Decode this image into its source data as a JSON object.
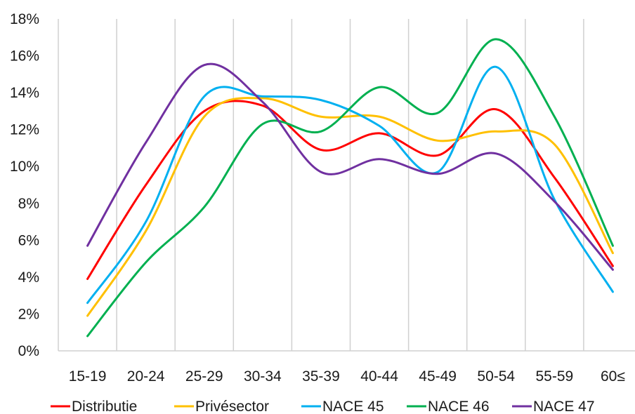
{
  "chart_data": {
    "type": "line",
    "title": "",
    "xlabel": "",
    "ylabel": "",
    "categories": [
      "15-19",
      "20-24",
      "25-29",
      "30-34",
      "35-39",
      "40-44",
      "45-49",
      "50-54",
      "55-59",
      "60≤"
    ],
    "ylim": [
      0,
      18
    ],
    "ytick_step": 2,
    "ytick_labels": [
      "0%",
      "2%",
      "4%",
      "6%",
      "8%",
      "10%",
      "12%",
      "14%",
      "16%",
      "18%"
    ],
    "grid": "vertical lines between categories",
    "legend_position": "bottom",
    "series": [
      {
        "name": "Distributie",
        "color": "#ff0000",
        "values": [
          3.9,
          9.0,
          13.0,
          13.3,
          10.9,
          11.8,
          10.6,
          13.1,
          9.4,
          4.6
        ]
      },
      {
        "name": "Privésector",
        "color": "#ffc000",
        "values": [
          1.9,
          6.5,
          12.7,
          13.7,
          12.7,
          12.7,
          11.4,
          11.9,
          11.2,
          5.3
        ]
      },
      {
        "name": "NACE 45",
        "color": "#00b0f0",
        "values": [
          2.6,
          7.0,
          13.8,
          13.8,
          13.6,
          12.2,
          9.7,
          15.4,
          8.2,
          3.2
        ]
      },
      {
        "name": "NACE 46",
        "color": "#00b050",
        "values": [
          0.8,
          4.8,
          7.8,
          12.3,
          11.9,
          14.3,
          12.9,
          16.9,
          12.7,
          5.7
        ]
      },
      {
        "name": "NACE 47",
        "color": "#7030a0",
        "values": [
          5.7,
          11.3,
          15.5,
          13.5,
          9.7,
          10.4,
          9.6,
          10.7,
          8.1,
          4.4
        ]
      }
    ]
  }
}
